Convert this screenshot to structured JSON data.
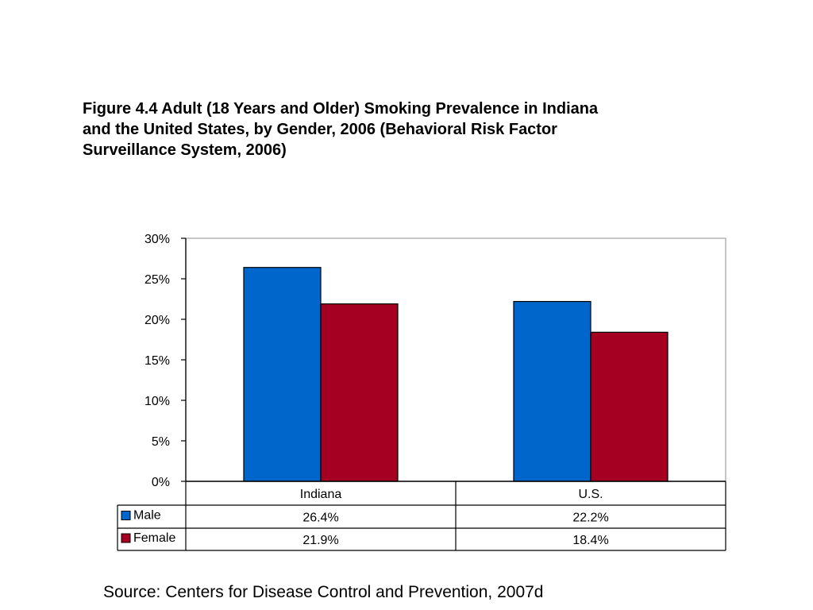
{
  "title_lines": [
    "Figure 4.4 Adult (18 Years and Older) Smoking Prevalence in Indiana",
    "and the United States, by Gender, 2006 (Behavioral Risk Factor",
    "Surveillance System, 2006)"
  ],
  "source": "Source: Centers for Disease Control and Prevention, 2007d",
  "chart_data": {
    "type": "bar",
    "categories": [
      "Indiana",
      "U.S."
    ],
    "series": [
      {
        "name": "Male",
        "values": [
          26.4,
          22.2
        ],
        "labels": [
          "26.4%",
          "22.2%"
        ],
        "color": "#0066CC"
      },
      {
        "name": "Female",
        "values": [
          21.9,
          18.4
        ],
        "labels": [
          "21.9%",
          "18.4%"
        ],
        "color": "#A50021"
      }
    ],
    "ylim": [
      0,
      30
    ],
    "yticks": [
      "0%",
      "5%",
      "10%",
      "15%",
      "20%",
      "25%",
      "30%"
    ],
    "ytick_values": [
      0,
      5,
      10,
      15,
      20,
      25,
      30
    ],
    "grid": false,
    "legend": "data-table"
  }
}
